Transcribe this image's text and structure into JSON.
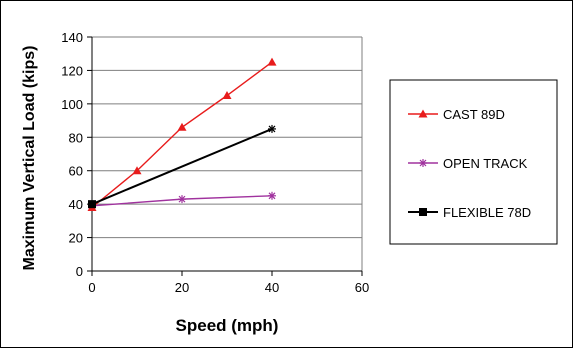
{
  "chart_data": {
    "type": "line",
    "title": "",
    "xlabel": "Speed (mph)",
    "ylabel": "Maximum Vertical Load (kips)",
    "xlim": [
      0,
      60
    ],
    "ylim": [
      0,
      140
    ],
    "xticks": [
      0,
      20,
      40,
      60
    ],
    "yticks": [
      0,
      20,
      40,
      60,
      80,
      100,
      120,
      140
    ],
    "grid": "horizontal",
    "legend_position": "right",
    "series": [
      {
        "name": "CAST 89D",
        "color": "#e81c1c",
        "marker": "triangle",
        "x": [
          0,
          10,
          20,
          30,
          40
        ],
        "y": [
          38,
          60,
          86,
          105,
          125
        ]
      },
      {
        "name": "OPEN TRACK",
        "color": "#a0329e",
        "marker": "star",
        "x": [
          0,
          20,
          40
        ],
        "y": [
          39,
          43,
          45
        ]
      },
      {
        "name": "FLEXIBLE 78D",
        "color": "#000000",
        "marker": "square",
        "x": [
          0,
          40
        ],
        "y": [
          40,
          85
        ]
      }
    ]
  }
}
